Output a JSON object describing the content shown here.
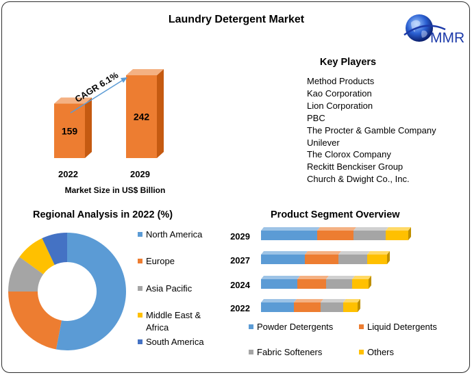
{
  "page": {
    "title": "Laundry Detergent Market",
    "logo_text": "MMR"
  },
  "colors": {
    "bar_front": "#ED7D31",
    "bar_top": "#F4B183",
    "bar_side": "#C55A11",
    "arrow": "#5B9BD5",
    "north_america": "#5B9BD5",
    "europe": "#ED7D31",
    "asia_pacific": "#A5A5A5",
    "middle_east_africa": "#FFC000",
    "south_america": "#4472C4"
  },
  "key_players": {
    "title": "Key Players",
    "items": [
      "Method Products",
      "Kao Corporation",
      "Lion Corporation",
      "PBC",
      "The Procter & Gamble Company",
      "Unilever",
      "The Clorox Company",
      "Reckitt Benckiser Group",
      "Church & Dwight Co., Inc."
    ]
  },
  "chart_data": [
    {
      "type": "bar",
      "categories": [
        "2022",
        "2029"
      ],
      "values": [
        159,
        242
      ],
      "xlabel": "Market Size in US$ Billion",
      "annotation": "CAGR 6.1%"
    },
    {
      "type": "pie",
      "title": "Regional Analysis in 2022 (%)",
      "labels": [
        "North America",
        "Europe",
        "Asia Pacific",
        "Middle East & Africa",
        "South America"
      ],
      "values": [
        53,
        22,
        10,
        8,
        7
      ],
      "legend": "right"
    },
    {
      "type": "bar",
      "orientation": "horizontal",
      "stacked": true,
      "title": "Product Segment Overview",
      "categories": [
        "2029",
        "2027",
        "2024",
        "2022"
      ],
      "series": [
        {
          "name": "Powder Detergents",
          "values": [
            82,
            64,
            53,
            48
          ]
        },
        {
          "name": "Liquid Detergents",
          "values": [
            53,
            49,
            42,
            39
          ]
        },
        {
          "name": "Fabric Softeners",
          "values": [
            47,
            42,
            38,
            33
          ]
        },
        {
          "name": "Others",
          "values": [
            33,
            29,
            24,
            21
          ]
        }
      ],
      "legend": "bottom"
    }
  ]
}
